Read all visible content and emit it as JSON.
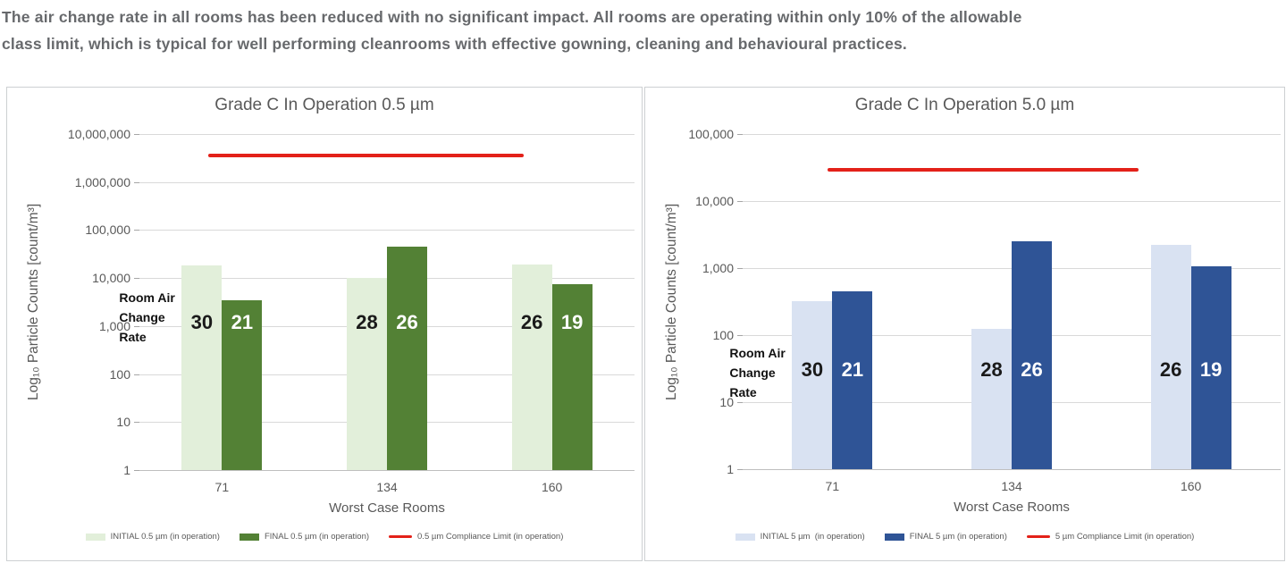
{
  "header": {
    "lines": [
      "The air change rate in all rooms has been reduced with no significant impact. All rooms are operating within only 10% of the allowable",
      "class limit, which is typical for well performing cleanrooms with effective gowning, cleaning and behavioural practices."
    ]
  },
  "colors": {
    "initial_green": "#e2efda",
    "final_green": "#538135",
    "initial_blue": "#d9e2f2",
    "final_blue": "#2f5496",
    "limit_red": "#e32119",
    "grid": "#d9d9d9",
    "axis_text": "#595959",
    "paragraph_text": "#67696c"
  },
  "chart_data": [
    {
      "type": "bar",
      "title": "Grade C In Operation 0.5 µm",
      "ylabel": "Log₁₀ Particle Counts [count/m³]",
      "xlabel": "Worst Case Rooms",
      "yscale": "log10",
      "ylim": [
        1,
        10000000
      ],
      "grid": true,
      "legend_position": "bottom",
      "categories": [
        "71",
        "134",
        "160"
      ],
      "series": [
        {
          "name": "INITIAL 0.5 µm (in operation)",
          "color": "#e2efda",
          "values": [
            18000,
            10000,
            19000
          ]
        },
        {
          "name": "FINAL 0.5 µm (in operation)",
          "color": "#538135",
          "values": [
            3500,
            45000,
            7500
          ]
        }
      ],
      "limit_line": {
        "name": "0.5 µm Compliance Limit (in operation)",
        "color": "#e32119",
        "value": 3520000
      },
      "air_change_rate": {
        "caption": "Room Air Change Rate",
        "initial": [
          30,
          28,
          26
        ],
        "final": [
          21,
          26,
          19
        ]
      }
    },
    {
      "type": "bar",
      "title": "Grade C In Operation 5.0 µm",
      "ylabel": "Log₁₀ Particle Counts [count/m³]",
      "xlabel": "Worst Case Rooms",
      "yscale": "log10",
      "ylim": [
        1,
        100000
      ],
      "grid": true,
      "legend_position": "bottom",
      "categories": [
        "71",
        "134",
        "160"
      ],
      "series": [
        {
          "name": "INITIAL 5 µm  (in operation)",
          "color": "#d9e2f2",
          "values": [
            320,
            125,
            2200
          ]
        },
        {
          "name": "FINAL 5 µm (in operation)",
          "color": "#2f5496",
          "values": [
            450,
            2500,
            1050
          ]
        }
      ],
      "limit_line": {
        "name": "5 µm Compliance Limit (in operation)",
        "color": "#e32119",
        "value": 29300
      },
      "air_change_rate": {
        "caption": "Room Air Change Rate",
        "initial": [
          30,
          28,
          26
        ],
        "final": [
          21,
          26,
          19
        ]
      }
    }
  ]
}
